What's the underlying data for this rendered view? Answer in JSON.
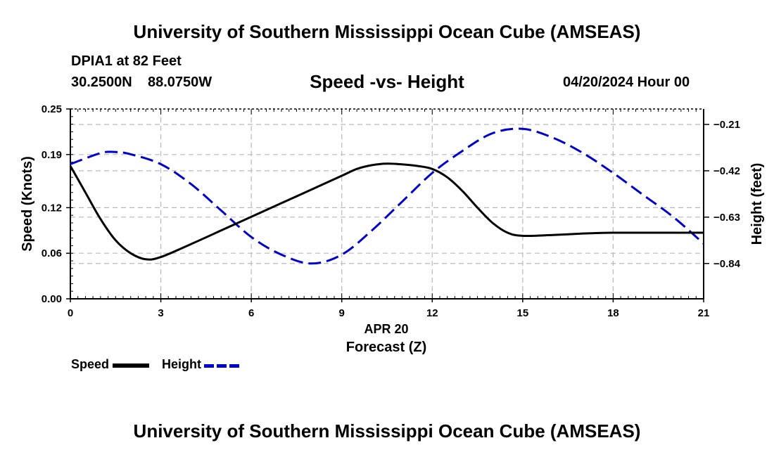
{
  "header": {
    "title": "University of Southern Mississippi Ocean Cube (AMSEAS)",
    "station": "DPIA1 at 82 Feet",
    "lat": "30.2500N",
    "lon": "88.0750W",
    "subtitle": "Speed -vs- Height",
    "date": "04/20/2024 Hour 00"
  },
  "footer": {
    "title": "University of Southern Mississippi Ocean Cube (AMSEAS)"
  },
  "legend": {
    "speed_label": "Speed",
    "height_label": "Height"
  },
  "colors": {
    "speed": "#000000",
    "height": "#0000cc",
    "grid": "#b8b8b8"
  },
  "chart_data": {
    "type": "line",
    "title": "Speed -vs- Height",
    "xlabel": "Forecast (Z)",
    "xlabel_date": "APR 20",
    "ylabel": "Speed (Knots)",
    "y2label": "Height (feet)",
    "xlim": [
      0,
      21
    ],
    "ylim": [
      0,
      0.25
    ],
    "y2lim": [
      -1.0,
      -0.14
    ],
    "x_ticks": [
      0,
      3,
      6,
      9,
      12,
      15,
      18,
      21
    ],
    "x_tick_labels": [
      "0",
      "3",
      "6",
      "9",
      "12",
      "15",
      "18",
      "21"
    ],
    "y_ticks": [
      0,
      0.06,
      0.12,
      0.19,
      0.25
    ],
    "y_tick_labels": [
      "0.00",
      "0.06",
      "0.12",
      "0.19",
      "0.25"
    ],
    "y2_ticks": [
      -0.21,
      -0.42,
      -0.63,
      -0.84
    ],
    "y2_tick_labels": [
      "-0.21",
      "-0.42",
      "-0.63",
      "-0.84"
    ],
    "grid": true,
    "legend_position": "bottom-left",
    "series": [
      {
        "name": "Speed",
        "axis": "left",
        "style": "solid",
        "x": [
          0,
          0.5,
          1,
          1.5,
          2,
          2.5,
          3,
          4,
          5,
          6,
          7,
          8,
          9,
          9.5,
          10,
          10.5,
          11,
          11.5,
          12,
          12.5,
          13,
          13.5,
          14,
          14.5,
          15,
          16,
          17,
          18,
          19,
          20,
          21
        ],
        "values": [
          0.175,
          0.14,
          0.105,
          0.077,
          0.06,
          0.052,
          0.055,
          0.072,
          0.09,
          0.108,
          0.126,
          0.144,
          0.162,
          0.171,
          0.176,
          0.178,
          0.177,
          0.175,
          0.171,
          0.16,
          0.142,
          0.12,
          0.1,
          0.087,
          0.083,
          0.084,
          0.086,
          0.087,
          0.087,
          0.087,
          0.087
        ]
      },
      {
        "name": "Height",
        "axis": "right",
        "style": "dashed",
        "x": [
          0,
          1,
          1.5,
          2,
          3,
          4,
          5,
          6,
          7,
          8,
          9,
          10,
          11,
          12,
          13,
          14,
          15,
          16,
          17,
          18,
          19,
          20,
          21
        ],
        "values": [
          -0.39,
          -0.34,
          -0.335,
          -0.345,
          -0.39,
          -0.48,
          -0.6,
          -0.72,
          -0.8,
          -0.84,
          -0.8,
          -0.69,
          -0.56,
          -0.43,
          -0.33,
          -0.25,
          -0.23,
          -0.27,
          -0.34,
          -0.43,
          -0.53,
          -0.63,
          -0.75
        ]
      }
    ]
  }
}
